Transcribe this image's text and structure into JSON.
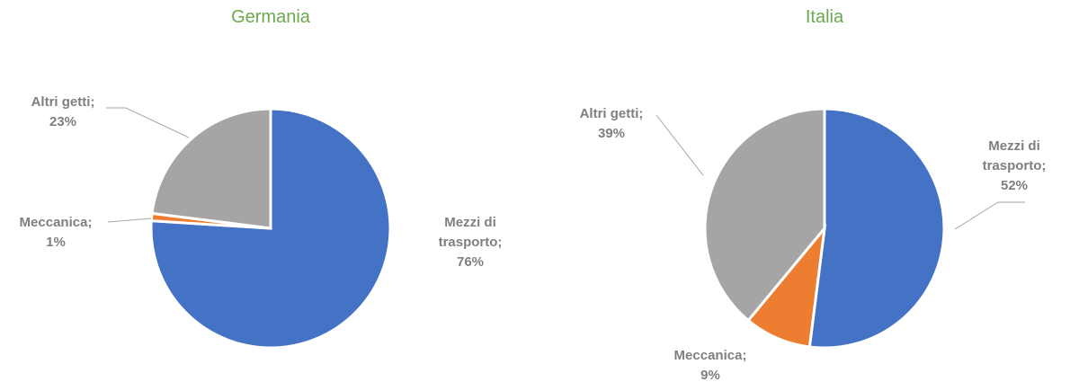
{
  "chart_data": [
    {
      "type": "pie",
      "title": "Germania",
      "categories": [
        "Mezzi di trasporto",
        "Meccanica",
        "Altri getti"
      ],
      "separator": ";",
      "values": [
        76,
        1,
        23
      ],
      "value_labels": [
        "76%",
        "1%",
        "23%"
      ],
      "colors": [
        "#4472c4",
        "#ed7d31",
        "#a5a5a5"
      ]
    },
    {
      "type": "pie",
      "title": "Italia",
      "categories": [
        "Mezzi di trasporto",
        "Meccanica",
        "Altri getti"
      ],
      "separator": ";",
      "values": [
        52,
        9,
        39
      ],
      "value_labels": [
        "52%",
        "9%",
        "39%"
      ],
      "colors": [
        "#4472c4",
        "#ed7d31",
        "#a5a5a5"
      ]
    }
  ]
}
